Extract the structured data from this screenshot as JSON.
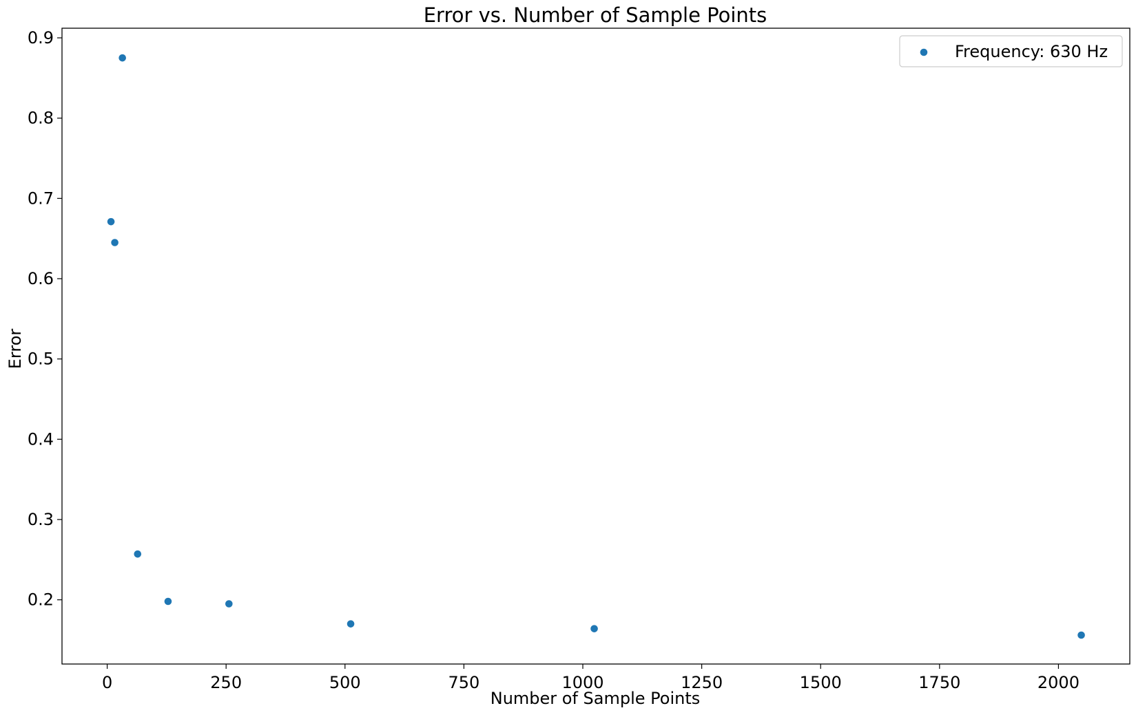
{
  "chart_data": {
    "type": "scatter",
    "title": "Error vs. Number of Sample Points",
    "xlabel": "Number of Sample Points",
    "ylabel": "Error",
    "xlim": [
      -95,
      2150
    ],
    "ylim": [
      0.12,
      0.912
    ],
    "xticks": [
      0,
      250,
      500,
      750,
      1000,
      1250,
      1500,
      1750,
      2000
    ],
    "xtick_labels": [
      "0",
      "250",
      "500",
      "750",
      "1000",
      "1250",
      "1500",
      "1750",
      "2000"
    ],
    "yticks": [
      0.2,
      0.3,
      0.4,
      0.5,
      0.6,
      0.7,
      0.8,
      0.9
    ],
    "ytick_labels": [
      "0.2",
      "0.3",
      "0.4",
      "0.5",
      "0.6",
      "0.7",
      "0.8",
      "0.9"
    ],
    "grid": false,
    "legend_position": "top-right",
    "series": [
      {
        "name": "Frequency: 630 Hz",
        "color": "#1f77b4",
        "points": [
          {
            "x": 8,
            "y": 0.671
          },
          {
            "x": 16,
            "y": 0.645
          },
          {
            "x": 32,
            "y": 0.875
          },
          {
            "x": 64,
            "y": 0.257
          },
          {
            "x": 128,
            "y": 0.198
          },
          {
            "x": 256,
            "y": 0.195
          },
          {
            "x": 512,
            "y": 0.17
          },
          {
            "x": 1024,
            "y": 0.164
          },
          {
            "x": 2048,
            "y": 0.156
          }
        ]
      }
    ]
  }
}
